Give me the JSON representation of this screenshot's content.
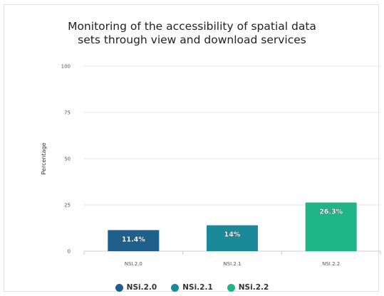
{
  "chart_data": {
    "type": "bar",
    "title": "Monitoring of the accessibility of spatial data\nsets through view and download services",
    "ylabel": "Percentage",
    "xlabel": "",
    "ylim": [
      0,
      100
    ],
    "yticks": [
      0,
      25,
      50,
      75,
      100
    ],
    "grid": true,
    "legend_position": "bottom",
    "categories": [
      "NSI.2.0",
      "NSI.2.1",
      "NSI.2.2"
    ],
    "series": [
      {
        "name": "NSi.2.0",
        "color": "#1f5f8b",
        "values": [
          11.4,
          null,
          null
        ],
        "labels": [
          "11.4%",
          "",
          ""
        ]
      },
      {
        "name": "NSi.2.1",
        "color": "#1a8a9b",
        "values": [
          null,
          14,
          null
        ],
        "labels": [
          "",
          "14%",
          ""
        ]
      },
      {
        "name": "NSi.2.2",
        "color": "#1fb586",
        "values": [
          null,
          null,
          26.3
        ],
        "labels": [
          "",
          "",
          "26.3%"
        ]
      }
    ]
  }
}
